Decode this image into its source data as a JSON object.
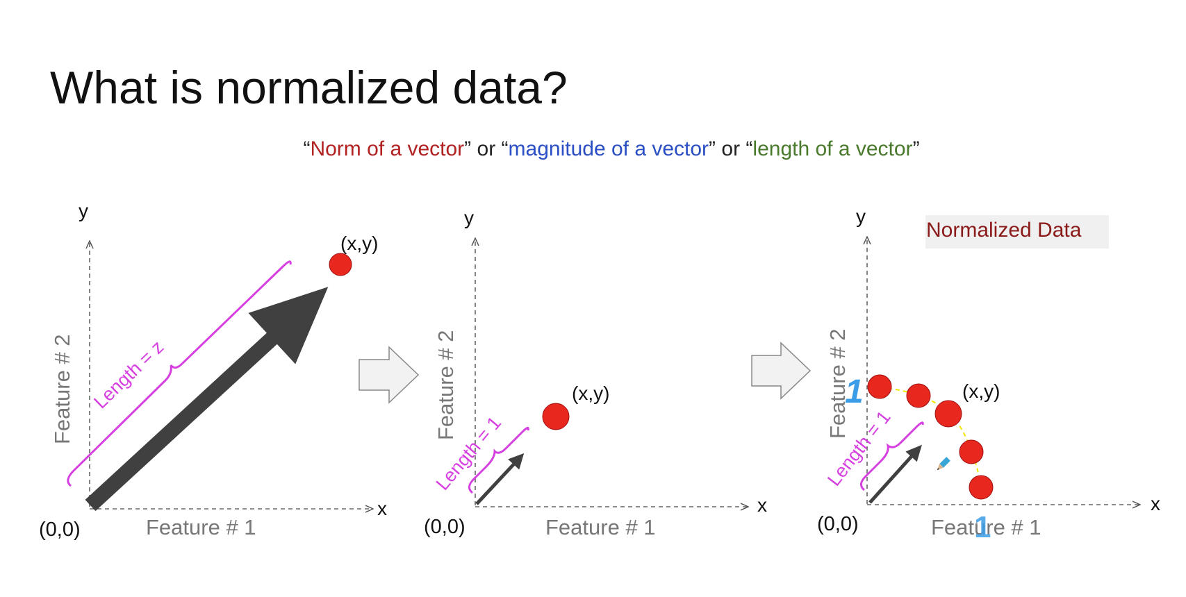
{
  "title": "What is normalized data?",
  "subtitle": {
    "q1_open": "“",
    "norm": "Norm of a vector",
    "q1_close": "”",
    "or1": " or ",
    "q2_open": "“",
    "magnitude": "magnitude of a vector",
    "q2_close": "”",
    "or2": " or ",
    "q3_open": "“",
    "length": "length of a vector",
    "q3_close": "”"
  },
  "colors": {
    "norm": "#b22222",
    "magnitude": "#2a4fc4",
    "length": "#4a7a2c",
    "brace": "#d63fe0",
    "point": "#e8281e",
    "arrow": "#404040",
    "axis_label": "#777777",
    "handwriting": "#3b9de8",
    "normalized_label": "#8b1a1a"
  },
  "panel1": {
    "y_label": "y",
    "x_label": "x",
    "origin_label": "(0,0)",
    "point_label": "(x,y)",
    "feature1_label": "Feature # 1",
    "feature2_label": "Feature # 2",
    "length_label": "Length = z"
  },
  "panel2": {
    "y_label": "y",
    "x_label": "x",
    "origin_label": "(0,0)",
    "point_label": "(x,y)",
    "feature1_label": "Feature # 1",
    "feature2_label": "Feature # 2",
    "length_label": "Length = 1"
  },
  "panel3": {
    "y_label": "y",
    "x_label": "x",
    "origin_label": "(0,0)",
    "point_label": "(x,y)",
    "feature1_label": "Feature # 1",
    "feature2_label": "Feature # 2",
    "length_label": "Length = 1",
    "normalized_label": "Normalized Data",
    "hand_one_y": "1",
    "hand_one_x": "1"
  },
  "icons": {
    "step_arrow_1": "right-block-arrow-icon",
    "step_arrow_2": "right-block-arrow-icon",
    "pencil_cursor": "pencil-cursor-icon"
  }
}
